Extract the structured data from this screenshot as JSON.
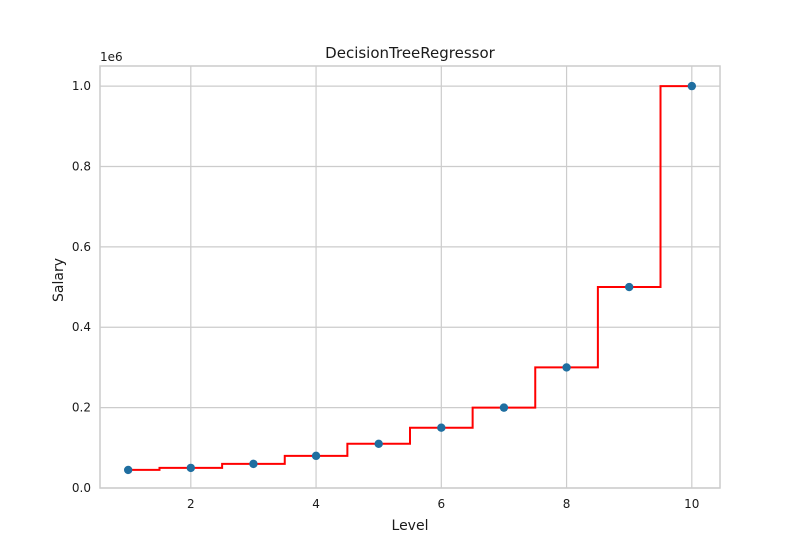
{
  "chart_data": {
    "type": "line",
    "title": "DecisionTreeRegressor",
    "xlabel": "Level",
    "ylabel": "Salary",
    "y_offset_label": "1e6",
    "xlim": [
      0.55,
      10.45
    ],
    "ylim": [
      0,
      1.05
    ],
    "x_ticks": [
      2,
      4,
      6,
      8,
      10
    ],
    "y_ticks": [
      0.0,
      0.2,
      0.4,
      0.6,
      0.8,
      1.0
    ],
    "y_tick_labels": [
      "0.0",
      "0.2",
      "0.4",
      "0.6",
      "0.8",
      "1.0"
    ],
    "grid": true,
    "series": [
      {
        "kind": "scatter",
        "color": "#1f6ea0",
        "x": [
          1,
          2,
          3,
          4,
          5,
          6,
          7,
          8,
          9,
          10
        ],
        "y": [
          0.045,
          0.05,
          0.06,
          0.08,
          0.11,
          0.15,
          0.2,
          0.3,
          0.5,
          1.0
        ]
      },
      {
        "kind": "step",
        "color": "#ff0000",
        "x": [
          1.0,
          1.5,
          1.5,
          2.5,
          2.5,
          3.5,
          3.5,
          4.5,
          4.5,
          5.5,
          5.5,
          6.5,
          6.5,
          7.5,
          7.5,
          8.5,
          8.5,
          9.5,
          9.5,
          10.0
        ],
        "y": [
          0.045,
          0.045,
          0.05,
          0.05,
          0.06,
          0.06,
          0.08,
          0.08,
          0.11,
          0.11,
          0.15,
          0.15,
          0.2,
          0.2,
          0.3,
          0.3,
          0.5,
          0.5,
          1.0,
          1.0
        ]
      }
    ]
  }
}
